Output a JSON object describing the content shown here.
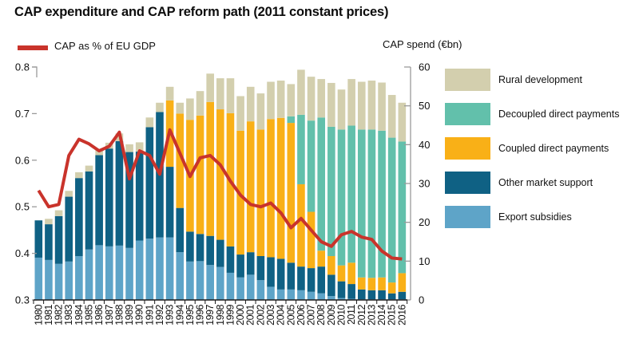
{
  "title": "CAP expenditure and CAP reform path (2011 constant prices)",
  "line_legend": "CAP as % of EU GDP",
  "right_axis_title": "CAP spend (€bn)",
  "colors": {
    "background": "#ffffff",
    "line_red": "#c9332b",
    "rural": "#d3cfae",
    "decoupled": "#62c0ab",
    "coupled": "#f9b017",
    "other_market": "#0f6184",
    "export_subsidies": "#5ea4c8",
    "axis_gray": "#9a9a9a",
    "baseline_dark": "#1a1a1a",
    "text_dark": "#111111"
  },
  "legend": [
    {
      "label": "Rural development",
      "color": "#d3cfae"
    },
    {
      "label": "Decoupled direct payments",
      "color": "#62c0ab"
    },
    {
      "label": "Coupled direct payments",
      "color": "#f9b017"
    },
    {
      "label": "Other market support",
      "color": "#0f6184"
    },
    {
      "label": "Export subsidies",
      "color": "#5ea4c8"
    }
  ],
  "left_axis": {
    "title": "",
    "ticks": [
      "0.8",
      "0.7",
      "0.6",
      "0.5",
      "0.4",
      "0.3"
    ],
    "min": 0.3,
    "max": 0.8
  },
  "right_axis": {
    "ticks": [
      "60",
      "50",
      "40",
      "30",
      "20",
      "10",
      "0"
    ],
    "min": 0,
    "max": 60
  },
  "chart_data": {
    "type": "bar",
    "subtype": "stacked-bars-with-line",
    "title": "CAP expenditure and CAP reform path (2011 constant prices)",
    "xlabel": "",
    "ylabel_left": "CAP as % of EU GDP",
    "ylabel_right": "CAP spend (€bn)",
    "ylim_left": [
      0.3,
      0.8
    ],
    "ylim_right": [
      0,
      60
    ],
    "grid": false,
    "legend_position": "right",
    "categories": [
      1980,
      1981,
      1982,
      1983,
      1984,
      1985,
      1986,
      1987,
      1988,
      1989,
      1990,
      1991,
      1992,
      1993,
      1994,
      1995,
      1996,
      1997,
      1998,
      1999,
      2000,
      2001,
      2002,
      2003,
      2004,
      2005,
      2006,
      2007,
      2008,
      2009,
      2010,
      2011,
      2012,
      2013,
      2014,
      2015,
      2016
    ],
    "series": [
      {
        "name": "Export subsidies",
        "color": "#5ea4c8",
        "values": [
          10.9,
          10.3,
          9.3,
          9.9,
          11.3,
          13.0,
          14.1,
          13.8,
          14.0,
          13.4,
          15.3,
          15.8,
          16.1,
          16.1,
          12.3,
          9.9,
          10.0,
          9.0,
          8.5,
          7.0,
          5.8,
          6.5,
          5.1,
          3.4,
          2.7,
          2.7,
          2.5,
          2.1,
          1.7,
          1.0,
          0.5,
          0.3,
          0.2,
          0.2,
          0.2,
          0.2,
          0.2
        ]
      },
      {
        "name": "Other market support",
        "color": "#0f6184",
        "values": [
          9.6,
          9.2,
          12.3,
          16.7,
          20.1,
          20.1,
          23.2,
          25.2,
          26.9,
          24.7,
          22.9,
          28.7,
          32.3,
          18.2,
          11.4,
          7.7,
          7.0,
          7.5,
          7.0,
          6.8,
          5.9,
          5.8,
          6.2,
          7.6,
          7.9,
          6.9,
          6.1,
          6.1,
          6.9,
          5.5,
          4.3,
          3.8,
          2.5,
          2.3,
          2.3,
          1.5,
          1.9
        ]
      },
      {
        "name": "Coupled direct payments",
        "color": "#f9b017",
        "values": [
          0,
          0,
          0,
          0,
          0,
          0,
          0,
          0,
          0,
          0,
          0,
          0,
          0,
          17.1,
          24.3,
          28.8,
          30.5,
          34.5,
          33.6,
          34.3,
          31.9,
          33.7,
          32.6,
          35.6,
          36.3,
          36.0,
          21.2,
          14.5,
          4.1,
          4.8,
          4.1,
          5.5,
          3.1,
          3.2,
          3.3,
          2.8,
          4.8
        ]
      },
      {
        "name": "Decoupled direct payments",
        "color": "#62c0ab",
        "values": [
          0,
          0,
          0,
          0,
          0,
          0,
          0,
          0,
          0,
          0,
          0,
          0,
          0,
          0,
          0,
          0,
          0,
          0,
          0,
          0,
          0,
          0,
          0,
          0,
          0,
          1.7,
          17.9,
          23.5,
          34.3,
          33.3,
          35.0,
          35.3,
          38.1,
          38.2,
          37.8,
          37.3,
          33.9
        ]
      },
      {
        "name": "Rural development",
        "color": "#d3cfae",
        "values": [
          0,
          1.4,
          1.5,
          1.5,
          1.5,
          1.5,
          1.5,
          1.5,
          2.0,
          2.0,
          2.4,
          2.5,
          2.4,
          3.5,
          2.8,
          5.5,
          6.3,
          7.3,
          8.0,
          9.0,
          8.9,
          8.9,
          9.3,
          9.6,
          9.6,
          8.3,
          11.6,
          11.3,
          9.9,
          11.3,
          10.3,
          12.0,
          12.3,
          12.6,
          12.4,
          11.0,
          10.0
        ]
      }
    ],
    "line": {
      "name": "CAP as % of EU GDP",
      "color": "#c9332b",
      "axis": "left",
      "values": [
        0.535,
        0.5,
        0.505,
        0.61,
        0.645,
        0.635,
        0.62,
        0.63,
        0.66,
        0.56,
        0.62,
        0.61,
        0.57,
        0.665,
        0.615,
        0.565,
        0.605,
        0.61,
        0.59,
        0.555,
        0.525,
        0.505,
        0.5,
        0.508,
        0.487,
        0.455,
        0.475,
        0.45,
        0.425,
        0.415,
        0.44,
        0.447,
        0.435,
        0.43,
        0.405,
        0.39,
        0.388
      ]
    }
  }
}
